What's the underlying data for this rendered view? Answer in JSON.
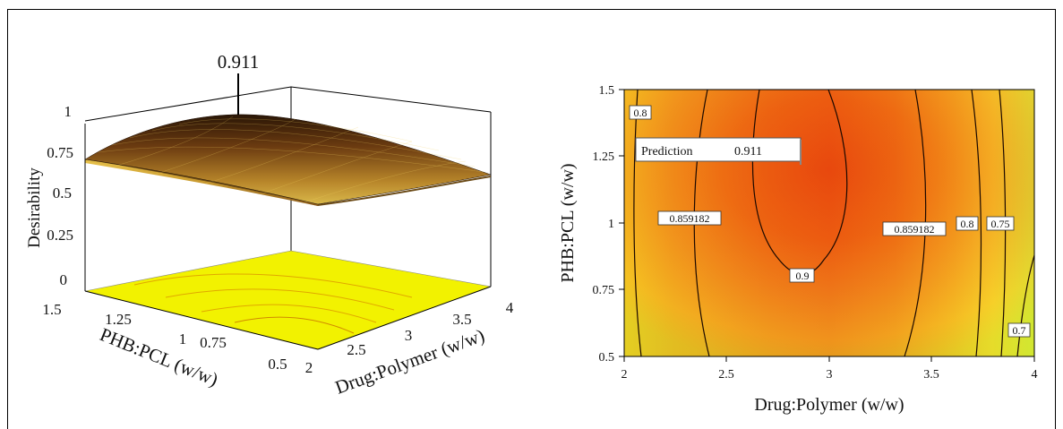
{
  "chart_data": [
    {
      "type": "surface",
      "title": "",
      "xlabel": "Drug:Polymer (w/w)",
      "ylabel": "PHB:PCL (w/w)",
      "zlabel": "Desirability",
      "x_ticks": [
        "2",
        "2.5",
        "3",
        "3.5",
        "4"
      ],
      "y_ticks": [
        "0.5",
        "0.75",
        "1",
        "1.25",
        "1.5"
      ],
      "z_ticks": [
        "0",
        "0.25",
        "0.5",
        "0.75",
        "1"
      ],
      "xlim": [
        2,
        4
      ],
      "ylim": [
        0.5,
        1.5
      ],
      "zlim": [
        0,
        1
      ],
      "annotations": [
        {
          "text": "0.911",
          "x": 2.85,
          "y": 1.5,
          "z": 0.911
        }
      ]
    },
    {
      "type": "contour",
      "title": "",
      "xlabel": "Drug:Polymer (w/w)",
      "ylabel": "PHB:PCL (w/w)",
      "x_ticks": [
        "2",
        "2.5",
        "3",
        "3.5",
        "4"
      ],
      "y_ticks": [
        "0.5",
        "0.75",
        "1",
        "1.25",
        "1.5"
      ],
      "xlim": [
        2,
        4
      ],
      "ylim": [
        0.5,
        1.5
      ],
      "contour_labels": [
        {
          "text": "0.8",
          "x": 2.1,
          "y": 1.42
        },
        {
          "text": "0.859182",
          "x": 2.2,
          "y": 1.0
        },
        {
          "text": "0.9",
          "x": 2.88,
          "y": 0.79
        },
        {
          "text": "0.859182",
          "x": 3.32,
          "y": 0.98
        },
        {
          "text": "0.8",
          "x": 3.67,
          "y": 1.0
        },
        {
          "text": "0.75",
          "x": 3.83,
          "y": 1.0
        },
        {
          "text": "0.7",
          "x": 3.93,
          "y": 0.6
        }
      ],
      "prediction": {
        "label": "Prediction",
        "value": "0.911"
      }
    }
  ]
}
